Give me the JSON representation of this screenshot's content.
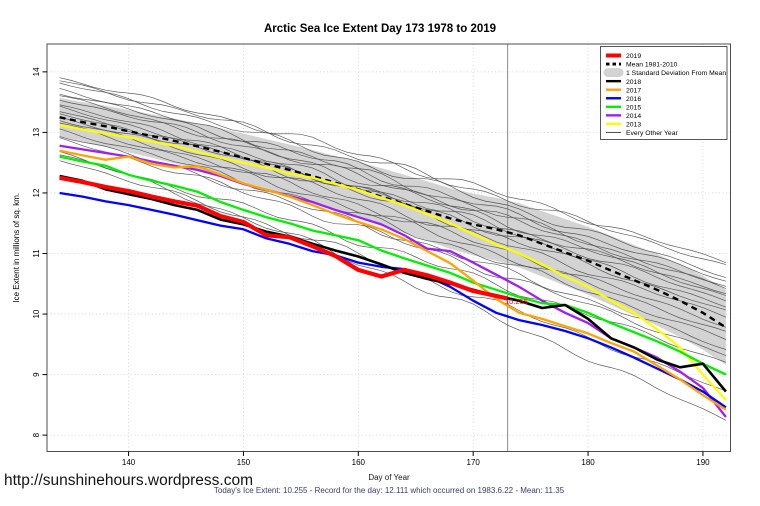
{
  "page": {
    "watermark": "http://sunshinehours.wordpress.com",
    "subtitle": "Today's Ice Extent: 10.255  - Record for the day: 12.111 which occurred on 1983.6.22  - Mean: 11.35",
    "annotation": "10.255"
  },
  "chart_data": {
    "type": "line",
    "title": "Arctic Sea Ice Extent Day 173 1978 to 2019",
    "xlabel": "Day of Year",
    "ylabel": "Ice Extent in millions of sq. km.",
    "xlim": [
      132.9,
      192.4
    ],
    "ylim": [
      7.73,
      14.46
    ],
    "xticks": [
      140,
      150,
      160,
      170,
      180,
      190
    ],
    "yticks": [
      8,
      9,
      10,
      11,
      12,
      13,
      14
    ],
    "grid": "dotted",
    "vline_day": 173,
    "legend_position": "top-right",
    "annotation": {
      "day": 173,
      "value": 10.255,
      "label": "10.255",
      "color": "#ff0000"
    },
    "days": [
      134,
      136,
      138,
      140,
      142,
      144,
      146,
      148,
      150,
      152,
      154,
      156,
      158,
      160,
      162,
      164,
      166,
      168,
      170,
      172,
      174,
      176,
      178,
      180,
      182,
      184,
      186,
      188,
      190,
      192
    ],
    "band": {
      "label": "1 Standard Deviation From Mean",
      "color": "#d3d3d3",
      "upper": [
        13.57,
        13.5,
        13.44,
        13.37,
        13.3,
        13.23,
        13.15,
        13.07,
        12.98,
        12.89,
        12.8,
        12.71,
        12.61,
        12.51,
        12.41,
        12.3,
        12.19,
        12.08,
        11.99,
        11.92,
        11.83,
        11.7,
        11.57,
        11.44,
        11.29,
        11.14,
        10.99,
        10.82,
        10.63,
        10.4
      ],
      "lower": [
        12.93,
        12.84,
        12.76,
        12.67,
        12.58,
        12.49,
        12.39,
        12.29,
        12.18,
        12.07,
        11.96,
        11.85,
        11.73,
        11.61,
        11.47,
        11.34,
        11.21,
        11.08,
        10.97,
        10.88,
        10.77,
        10.62,
        10.47,
        10.32,
        10.15,
        9.98,
        9.81,
        9.62,
        9.41,
        9.16
      ]
    },
    "series": [
      {
        "name": "Mean 1981-2010",
        "color": "#000000",
        "dashed": true,
        "width": 2.4,
        "values": [
          13.25,
          13.17,
          13.1,
          13.02,
          12.94,
          12.86,
          12.77,
          12.68,
          12.58,
          12.48,
          12.38,
          12.28,
          12.17,
          12.06,
          11.94,
          11.82,
          11.7,
          11.58,
          11.48,
          11.4,
          11.3,
          11.16,
          11.02,
          10.88,
          10.72,
          10.56,
          10.4,
          10.22,
          10.02,
          9.78
        ]
      },
      {
        "name": "2013",
        "color": "#ffff00",
        "width": 2.3,
        "values": [
          13.12,
          13.05,
          12.98,
          12.92,
          12.85,
          12.78,
          12.68,
          12.58,
          12.5,
          12.42,
          12.32,
          12.25,
          12.15,
          12.05,
          11.92,
          11.8,
          11.65,
          11.5,
          11.32,
          11.15,
          11.0,
          10.82,
          10.62,
          10.45,
          10.22,
          10.02,
          9.75,
          9.45,
          9.0,
          8.58
        ]
      },
      {
        "name": "2014",
        "color": "#a020f0",
        "width": 2.3,
        "values": [
          12.78,
          12.72,
          12.66,
          12.6,
          12.52,
          12.45,
          12.38,
          12.28,
          12.15,
          12.05,
          11.95,
          11.85,
          11.72,
          11.6,
          11.48,
          11.3,
          11.08,
          11.04,
          10.85,
          10.65,
          10.45,
          10.22,
          10.02,
          9.85,
          9.6,
          9.45,
          9.28,
          9.05,
          8.78,
          8.3
        ]
      },
      {
        "name": "2015",
        "color": "#00ee00",
        "width": 2.3,
        "values": [
          12.6,
          12.52,
          12.45,
          12.3,
          12.2,
          12.12,
          12.02,
          11.85,
          11.72,
          11.6,
          11.5,
          11.38,
          11.3,
          11.22,
          11.05,
          10.92,
          10.8,
          10.68,
          10.52,
          10.4,
          10.28,
          10.18,
          10.15,
          10.02,
          9.85,
          9.7,
          9.55,
          9.38,
          9.18,
          9.0
        ]
      },
      {
        "name": "2016",
        "color": "#0000ff",
        "width": 2.3,
        "values": [
          12.0,
          11.94,
          11.86,
          11.8,
          11.72,
          11.64,
          11.55,
          11.46,
          11.4,
          11.25,
          11.16,
          11.04,
          10.97,
          10.85,
          10.78,
          10.74,
          10.62,
          10.45,
          10.22,
          10.02,
          9.9,
          9.82,
          9.72,
          9.6,
          9.45,
          9.28,
          9.1,
          8.92,
          8.72,
          8.46
        ]
      },
      {
        "name": "2017",
        "color": "#ffa500",
        "width": 2.3,
        "values": [
          12.7,
          12.62,
          12.55,
          12.6,
          12.48,
          12.42,
          12.44,
          12.3,
          12.16,
          12.05,
          11.94,
          11.8,
          11.65,
          11.52,
          11.4,
          11.24,
          11.04,
          10.84,
          10.55,
          10.25,
          10.02,
          9.92,
          9.8,
          9.68,
          9.52,
          9.38,
          9.15,
          8.92,
          8.66,
          8.42
        ]
      },
      {
        "name": "2018",
        "color": "#000000",
        "width": 2.6,
        "values": [
          12.28,
          12.2,
          12.06,
          11.98,
          11.9,
          11.8,
          11.72,
          11.56,
          11.48,
          11.36,
          11.28,
          11.16,
          11.05,
          10.95,
          10.82,
          10.68,
          10.58,
          10.5,
          10.4,
          10.3,
          10.22,
          10.1,
          10.15,
          9.92,
          9.6,
          9.45,
          9.25,
          9.12,
          9.18,
          8.72
        ]
      },
      {
        "name": "2019",
        "color": "#ff0000",
        "width": 4.2,
        "days": [
          134,
          136,
          138,
          140,
          142,
          144,
          146,
          148,
          150,
          152,
          154,
          156,
          158,
          160,
          162,
          164,
          166,
          168,
          170,
          172,
          173
        ],
        "values": [
          12.25,
          12.18,
          12.1,
          12.03,
          11.94,
          11.86,
          11.79,
          11.62,
          11.52,
          11.3,
          11.27,
          11.12,
          10.96,
          10.73,
          10.62,
          10.73,
          10.64,
          10.52,
          10.38,
          10.3,
          10.255
        ]
      }
    ],
    "every_other_year": {
      "label": "Every Other Year",
      "color": "#4a4a4a",
      "width": 0.7,
      "lines": [
        {
          "start": 13.9,
          "end": 10.85
        },
        {
          "start": 13.82,
          "end": 10.62
        },
        {
          "start": 13.85,
          "end": 10.8
        },
        {
          "start": 13.72,
          "end": 10.42
        },
        {
          "start": 13.65,
          "end": 10.55
        },
        {
          "start": 13.6,
          "end": 10.3
        },
        {
          "start": 13.42,
          "end": 10.12
        },
        {
          "start": 13.55,
          "end": 10.45
        },
        {
          "start": 13.45,
          "end": 10.22
        },
        {
          "start": 13.3,
          "end": 10.35
        },
        {
          "start": 13.35,
          "end": 10.05
        },
        {
          "start": 13.25,
          "end": 9.95
        },
        {
          "start": 13.2,
          "end": 9.8
        },
        {
          "start": 13.15,
          "end": 9.7
        },
        {
          "start": 13.05,
          "end": 9.58
        },
        {
          "start": 12.95,
          "end": 9.42
        },
        {
          "start": 12.62,
          "end": 9.2
        },
        {
          "start": 12.9,
          "end": 9.32
        },
        {
          "start": 12.55,
          "end": 8.72
        },
        {
          "start": 12.68,
          "end": 8.25
        }
      ]
    },
    "legend": [
      {
        "label": "2019",
        "color": "#ff0000",
        "type": "line",
        "width": 4
      },
      {
        "label": "Mean 1981-2010",
        "color": "#000000",
        "type": "dashed",
        "width": 2.8
      },
      {
        "label": "1 Standard Deviation From Mean",
        "color": "#d3d3d3",
        "type": "band"
      },
      {
        "label": "2018",
        "color": "#000000",
        "type": "line",
        "width": 2.4
      },
      {
        "label": "2017",
        "color": "#ffa500",
        "type": "line",
        "width": 2.4
      },
      {
        "label": "2016",
        "color": "#0000ff",
        "type": "line",
        "width": 2.4
      },
      {
        "label": "2015",
        "color": "#00ee00",
        "type": "line",
        "width": 2.4
      },
      {
        "label": "2014",
        "color": "#a020f0",
        "type": "line",
        "width": 2.4
      },
      {
        "label": "2013",
        "color": "#ffff00",
        "type": "line",
        "width": 2.4
      },
      {
        "label": "Every Other Year",
        "color": "#4a4a4a",
        "type": "line",
        "width": 1
      }
    ]
  }
}
